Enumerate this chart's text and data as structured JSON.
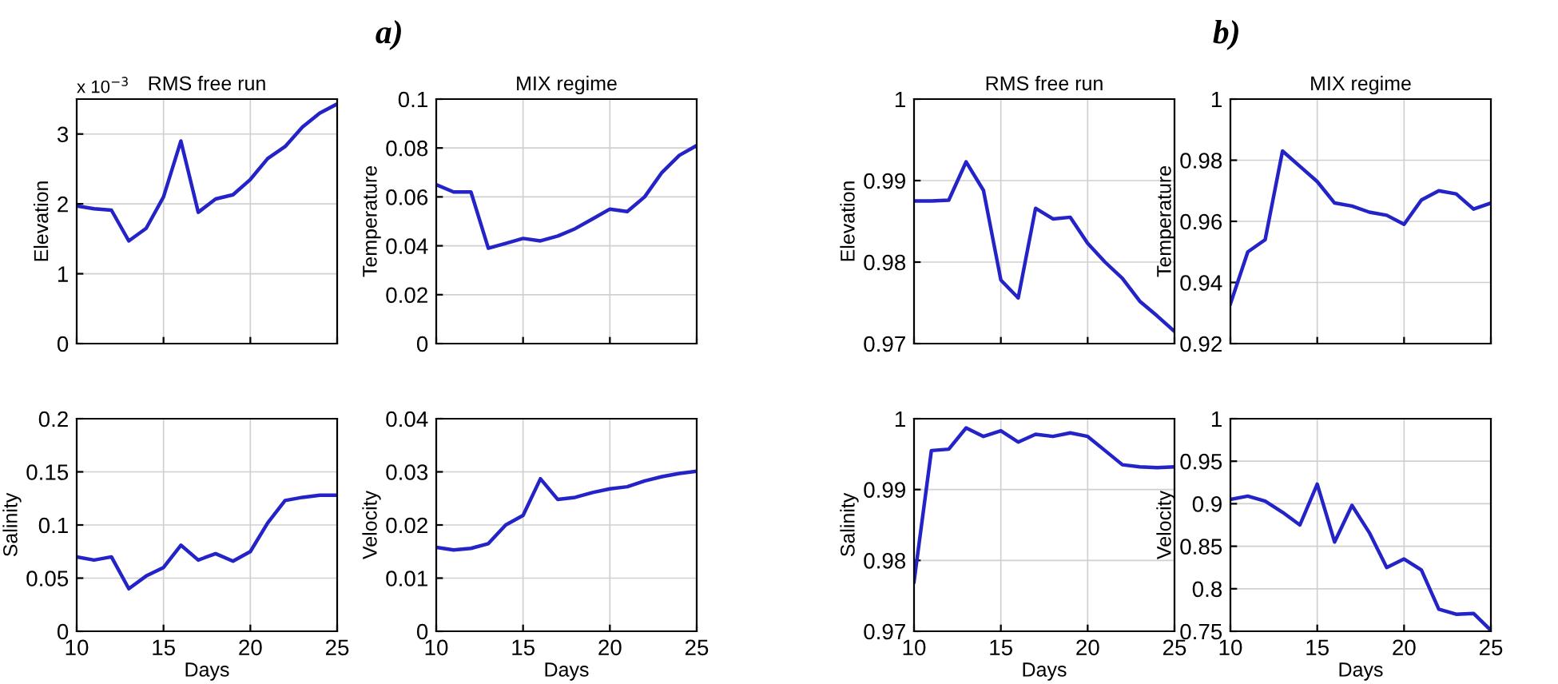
{
  "chart_data": [
    {
      "type": "line",
      "title": "RMS free run",
      "ylabel": "Elevation",
      "x": [
        10,
        11,
        12,
        13,
        14,
        15,
        16,
        17,
        18,
        19,
        20,
        21,
        22,
        23,
        24,
        25
      ],
      "series": [
        {
          "color": "#2323c8",
          "values": [
            1.97,
            1.93,
            1.91,
            1.47,
            1.65,
            2.1,
            2.9,
            1.88,
            2.07,
            2.13,
            2.35,
            2.65,
            2.82,
            3.1,
            3.3,
            3.43
          ]
        }
      ],
      "xlim": [
        10,
        25
      ],
      "xticks": [
        10,
        15,
        20,
        25
      ],
      "ylim": [
        0,
        3.5
      ],
      "yticks": [
        0,
        1,
        2,
        3
      ],
      "grid": true,
      "tick_labels": "y",
      "annotations": [
        "x 10$^{−3}$",
        "a)"
      ]
    },
    {
      "type": "line",
      "title": "MIX regime",
      "ylabel": "Temperature",
      "x": [
        10,
        11,
        12,
        13,
        14,
        15,
        16,
        17,
        18,
        19,
        20,
        21,
        22,
        23,
        24,
        25
      ],
      "series": [
        {
          "color": "#2323c8",
          "values": [
            0.065,
            0.062,
            0.062,
            0.039,
            0.041,
            0.043,
            0.042,
            0.044,
            0.047,
            0.051,
            0.055,
            0.054,
            0.06,
            0.07,
            0.077,
            0.081
          ]
        }
      ],
      "xlim": [
        10,
        25
      ],
      "xticks": [
        10,
        15,
        20,
        25
      ],
      "ylim": [
        0,
        0.1
      ],
      "yticks": [
        0,
        0.02,
        0.04,
        0.06,
        0.08,
        0.1
      ],
      "grid": true,
      "tick_labels": "y"
    },
    {
      "type": "line",
      "title": "RMS free run",
      "ylabel": "Elevation",
      "x": [
        10,
        11,
        12,
        13,
        14,
        15,
        16,
        17,
        18,
        19,
        20,
        21,
        22,
        23,
        24,
        25
      ],
      "series": [
        {
          "color": "#2323c8",
          "values": [
            0.9875,
            0.9875,
            0.9876,
            0.9923,
            0.9888,
            0.9778,
            0.9756,
            0.9866,
            0.9853,
            0.9855,
            0.9823,
            0.98,
            0.978,
            0.9752,
            0.9734,
            0.9715
          ]
        }
      ],
      "xlim": [
        10,
        25
      ],
      "xticks": [
        10,
        15,
        20,
        25
      ],
      "ylim": [
        0.97,
        1
      ],
      "yticks": [
        0.97,
        0.98,
        0.99,
        1
      ],
      "grid": true,
      "tick_labels": "y",
      "annotations": [
        "b)"
      ]
    },
    {
      "type": "line",
      "title": "MIX regime",
      "ylabel": "Temperature",
      "x": [
        10,
        11,
        12,
        13,
        14,
        15,
        16,
        17,
        18,
        19,
        20,
        21,
        22,
        23,
        24,
        25
      ],
      "series": [
        {
          "color": "#2323c8",
          "values": [
            0.933,
            0.95,
            0.954,
            0.983,
            0.978,
            0.973,
            0.966,
            0.965,
            0.963,
            0.962,
            0.959,
            0.967,
            0.97,
            0.969,
            0.964,
            0.966
          ]
        }
      ],
      "xlim": [
        10,
        25
      ],
      "xticks": [
        10,
        15,
        20,
        25
      ],
      "ylim": [
        0.92,
        1
      ],
      "yticks": [
        0.92,
        0.94,
        0.96,
        0.98,
        1
      ],
      "grid": true,
      "tick_labels": "y"
    },
    {
      "type": "line",
      "ylabel": "Salinity",
      "xlabel": "Days",
      "x": [
        10,
        11,
        12,
        13,
        14,
        15,
        16,
        17,
        18,
        19,
        20,
        21,
        22,
        23,
        24,
        25
      ],
      "series": [
        {
          "color": "#2323c8",
          "values": [
            0.07,
            0.067,
            0.07,
            0.04,
            0.052,
            0.06,
            0.081,
            0.067,
            0.073,
            0.066,
            0.075,
            0.102,
            0.123,
            0.126,
            0.128,
            0.128
          ]
        }
      ],
      "xlim": [
        10,
        25
      ],
      "xticks": [
        10,
        15,
        20,
        25
      ],
      "ylim": [
        0,
        0.2
      ],
      "yticks": [
        0,
        0.05,
        0.1,
        0.15,
        0.2
      ],
      "grid": true
    },
    {
      "type": "line",
      "ylabel": "Velocity",
      "xlabel": "Days",
      "x": [
        10,
        11,
        12,
        13,
        14,
        15,
        16,
        17,
        18,
        19,
        20,
        21,
        22,
        23,
        24,
        25
      ],
      "series": [
        {
          "color": "#2323c8",
          "values": [
            0.0158,
            0.0153,
            0.0156,
            0.0165,
            0.02,
            0.0218,
            0.0287,
            0.0248,
            0.0252,
            0.0261,
            0.0268,
            0.0272,
            0.0283,
            0.0291,
            0.0297,
            0.0301
          ]
        }
      ],
      "xlim": [
        10,
        25
      ],
      "xticks": [
        10,
        15,
        20,
        25
      ],
      "ylim": [
        0,
        0.04
      ],
      "yticks": [
        0,
        0.01,
        0.02,
        0.03,
        0.04
      ],
      "grid": true
    },
    {
      "type": "line",
      "ylabel": "Salinity",
      "xlabel": "Days",
      "x": [
        10,
        11,
        12,
        13,
        14,
        15,
        16,
        17,
        18,
        19,
        20,
        21,
        22,
        23,
        24,
        25
      ],
      "series": [
        {
          "color": "#2323c8",
          "values": [
            0.977,
            0.9955,
            0.9957,
            0.9987,
            0.9975,
            0.9983,
            0.9967,
            0.9978,
            0.9975,
            0.998,
            0.9975,
            0.9955,
            0.9935,
            0.9932,
            0.9931,
            0.9932
          ]
        }
      ],
      "xlim": [
        10,
        25
      ],
      "xticks": [
        10,
        15,
        20,
        25
      ],
      "ylim": [
        0.97,
        1
      ],
      "yticks": [
        0.97,
        0.98,
        0.99,
        1
      ],
      "grid": true
    },
    {
      "type": "line",
      "ylabel": "Velocity",
      "xlabel": "Days",
      "x": [
        10,
        11,
        12,
        13,
        14,
        15,
        16,
        17,
        18,
        19,
        20,
        21,
        22,
        23,
        24,
        25
      ],
      "series": [
        {
          "color": "#2323c8",
          "values": [
            0.905,
            0.909,
            0.903,
            0.89,
            0.875,
            0.923,
            0.855,
            0.898,
            0.866,
            0.825,
            0.835,
            0.822,
            0.776,
            0.77,
            0.771,
            0.751
          ]
        }
      ],
      "xlim": [
        10,
        25
      ],
      "xticks": [
        10,
        15,
        20,
        25
      ],
      "ylim": [
        0.75,
        1
      ],
      "yticks": [
        0.75,
        0.8,
        0.85,
        0.9,
        0.95,
        1
      ],
      "grid": true
    }
  ]
}
